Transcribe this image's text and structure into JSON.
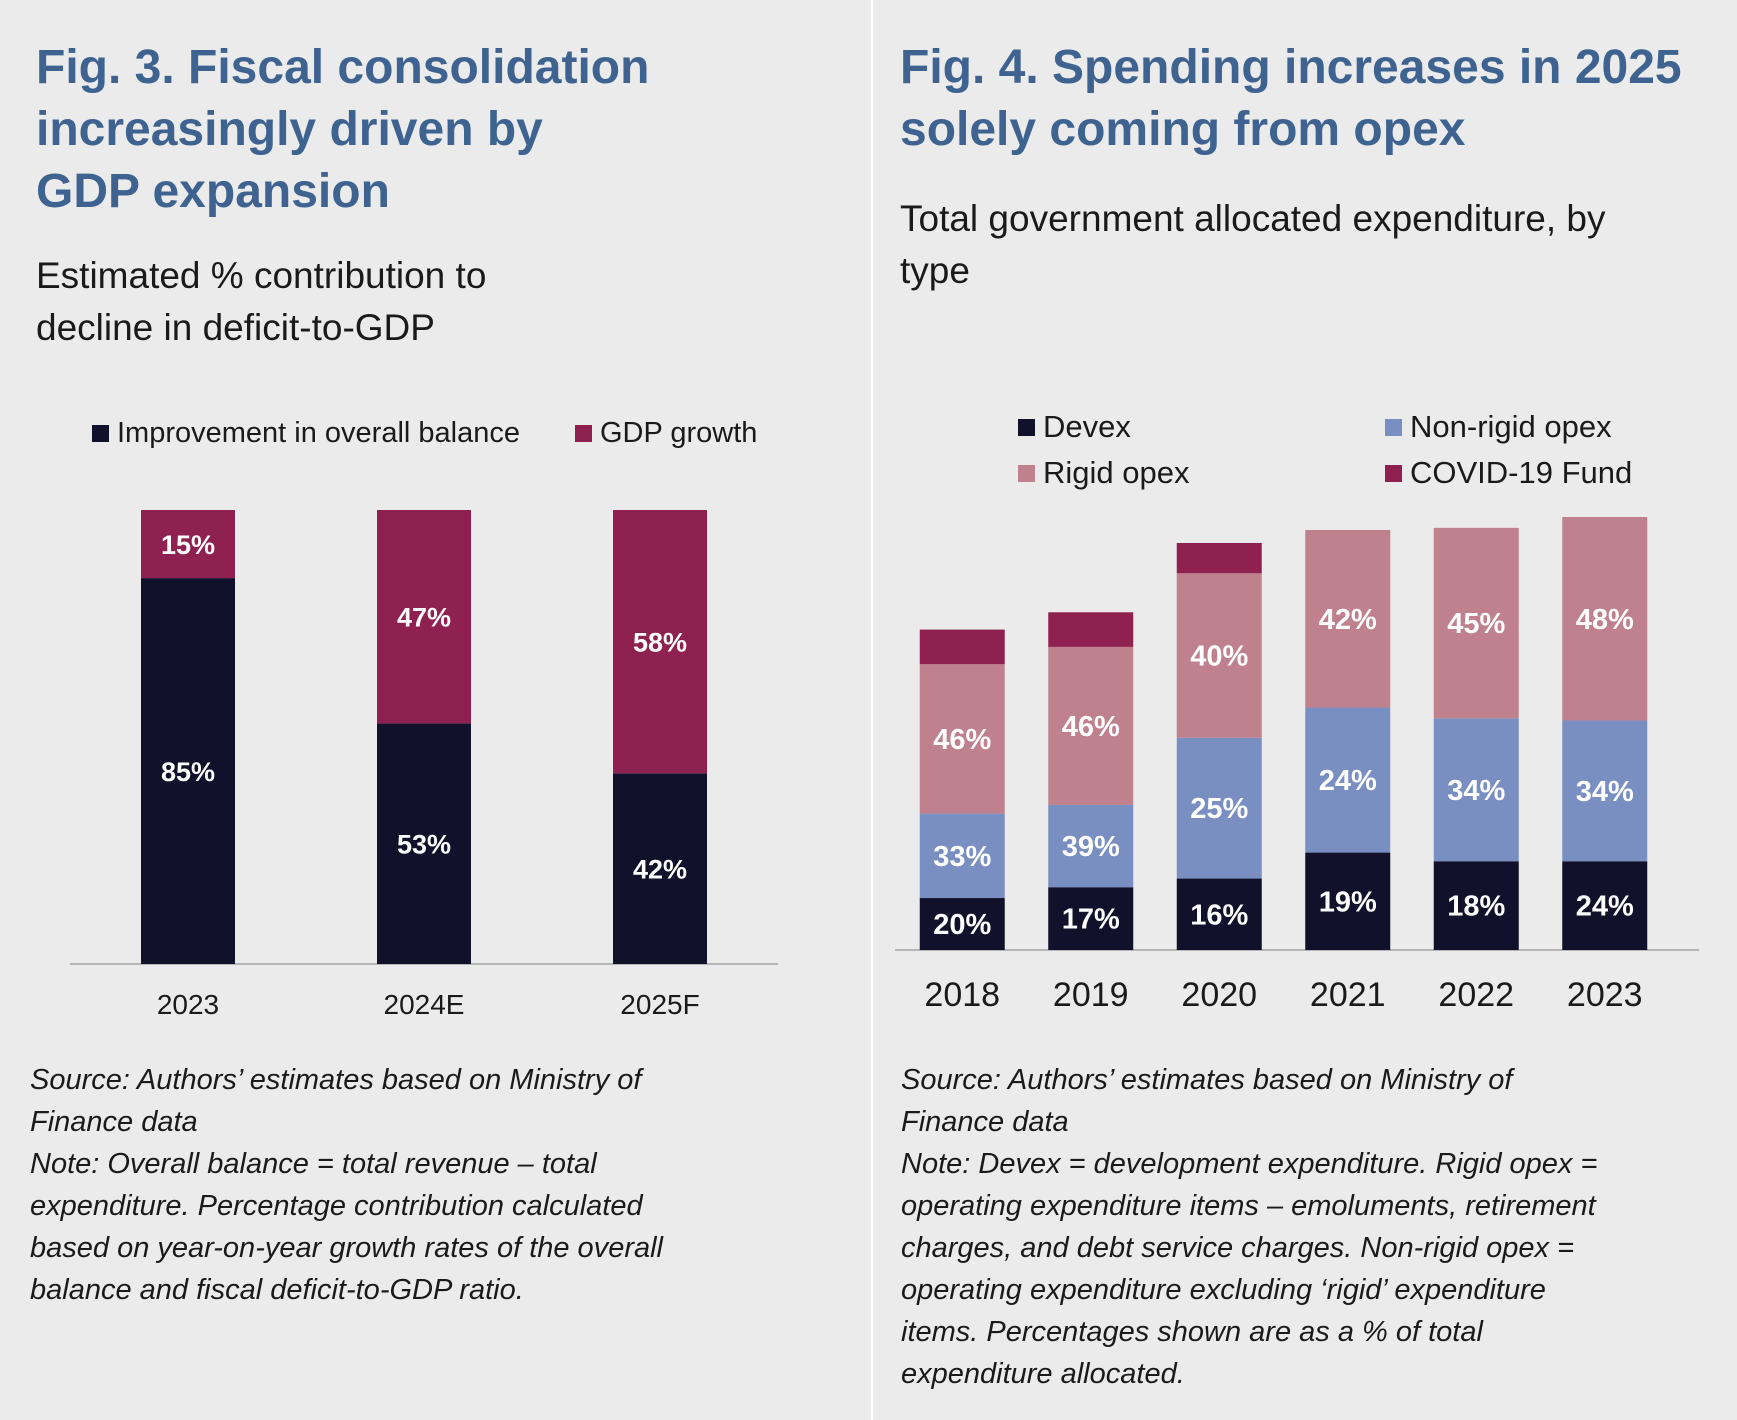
{
  "figures": [
    {
      "title": "Fig. 3. Fiscal consolidation\nincreasingly driven by\nGDP expansion",
      "subtitle": "Estimated % contribution to\ndecline in deficit-to-GDP",
      "legend": [
        {
          "label": "Improvement in overall balance",
          "color": "#12112b"
        },
        {
          "label": "GDP growth",
          "color": "#8f2151"
        }
      ],
      "source": "Source: Authors’ estimates based on Ministry of\nFinance data",
      "note": "Note: Overall balance = total revenue – total\nexpenditure. Percentage contribution calculated\nbased on year-on-year growth rates of the overall\nbalance and fiscal deficit-to-GDP ratio."
    },
    {
      "title": "Fig. 4. Spending increases in 2025\nsolely coming from opex",
      "subtitle": "Total government allocated expenditure, by\ntype",
      "legend": [
        {
          "label": "Devex",
          "color": "#12112b"
        },
        {
          "label": "Non-rigid opex",
          "color": "#7a8fc1"
        },
        {
          "label": "Rigid opex",
          "color": "#c0818e"
        },
        {
          "label": "COVID-19 Fund",
          "color": "#8f2151"
        }
      ],
      "source": "Source: Authors’ estimates based on Ministry of\nFinance data",
      "note": "Note: Devex = development expenditure. Rigid opex =\noperating expenditure items – emoluments, retirement\ncharges, and debt service charges. Non-rigid opex =\noperating expenditure excluding ‘rigid’ expenditure\nitems. Percentages shown are as a % of total\nexpenditure allocated."
    }
  ],
  "chart_data": [
    {
      "type": "bar",
      "stacked": true,
      "normalized": true,
      "categories": [
        "2023",
        "2024E",
        "2025F"
      ],
      "series": [
        {
          "name": "Improvement in overall balance",
          "values": [
            85,
            53,
            42
          ],
          "labels": [
            "85%",
            "53%",
            "42%"
          ],
          "color": "#12112b"
        },
        {
          "name": "GDP growth",
          "values": [
            15,
            47,
            58
          ],
          "labels": [
            "15%",
            "47%",
            "58%"
          ],
          "color": "#8f2151"
        }
      ],
      "ylim": [
        0,
        100
      ],
      "legend_position": "top",
      "grid": false
    },
    {
      "type": "bar",
      "stacked": true,
      "categories": [
        "2018",
        "2019",
        "2020",
        "2021",
        "2022",
        "2023"
      ],
      "bar_totals": [
        74,
        78,
        94,
        97,
        97,
        100
      ],
      "series": [
        {
          "name": "Devex",
          "values": [
            12,
            14.5,
            16.5,
            22.5,
            20.5,
            20.5
          ],
          "labels": [
            "20%",
            "17%",
            "16%",
            "19%",
            "18%",
            "24%"
          ],
          "color": "#12112b"
        },
        {
          "name": "Non-rigid opex",
          "values": [
            19.5,
            19,
            32.5,
            33.5,
            33,
            32.5
          ],
          "labels": [
            "33%",
            "39%",
            "25%",
            "24%",
            "34%",
            "34%"
          ],
          "color": "#7a8fc1"
        },
        {
          "name": "Rigid opex",
          "values": [
            34.5,
            36.5,
            38,
            41,
            44,
            47
          ],
          "labels": [
            "46%",
            "46%",
            "40%",
            "42%",
            "45%",
            "48%"
          ],
          "color": "#c0818e"
        },
        {
          "name": "COVID-19 Fund",
          "values": [
            8,
            8,
            7,
            0,
            0,
            0
          ],
          "labels": [
            "",
            "",
            "",
            "",
            "",
            ""
          ],
          "color": "#8f2151"
        }
      ],
      "ylim": [
        0,
        100
      ],
      "legend_position": "top",
      "grid": false
    }
  ]
}
